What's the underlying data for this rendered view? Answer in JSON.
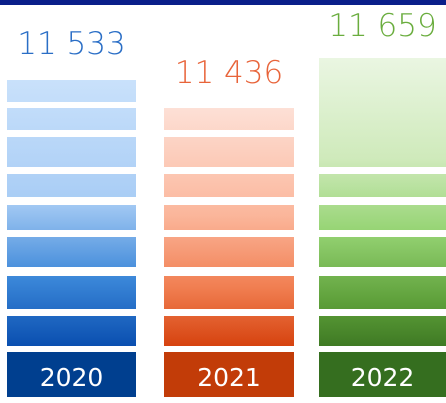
{
  "chart_data": {
    "type": "bar",
    "categories": [
      "2020",
      "2021",
      "2022"
    ],
    "values": [
      11533,
      11436,
      11659
    ],
    "value_labels": [
      "11 533",
      "11 436",
      "11 659"
    ],
    "colors": {
      "2020": "#1f6fc4",
      "2021": "#e8643a",
      "2022": "#6aad3e"
    },
    "title": "",
    "xlabel": "",
    "ylabel": "",
    "grid": false,
    "legend": "none"
  }
}
